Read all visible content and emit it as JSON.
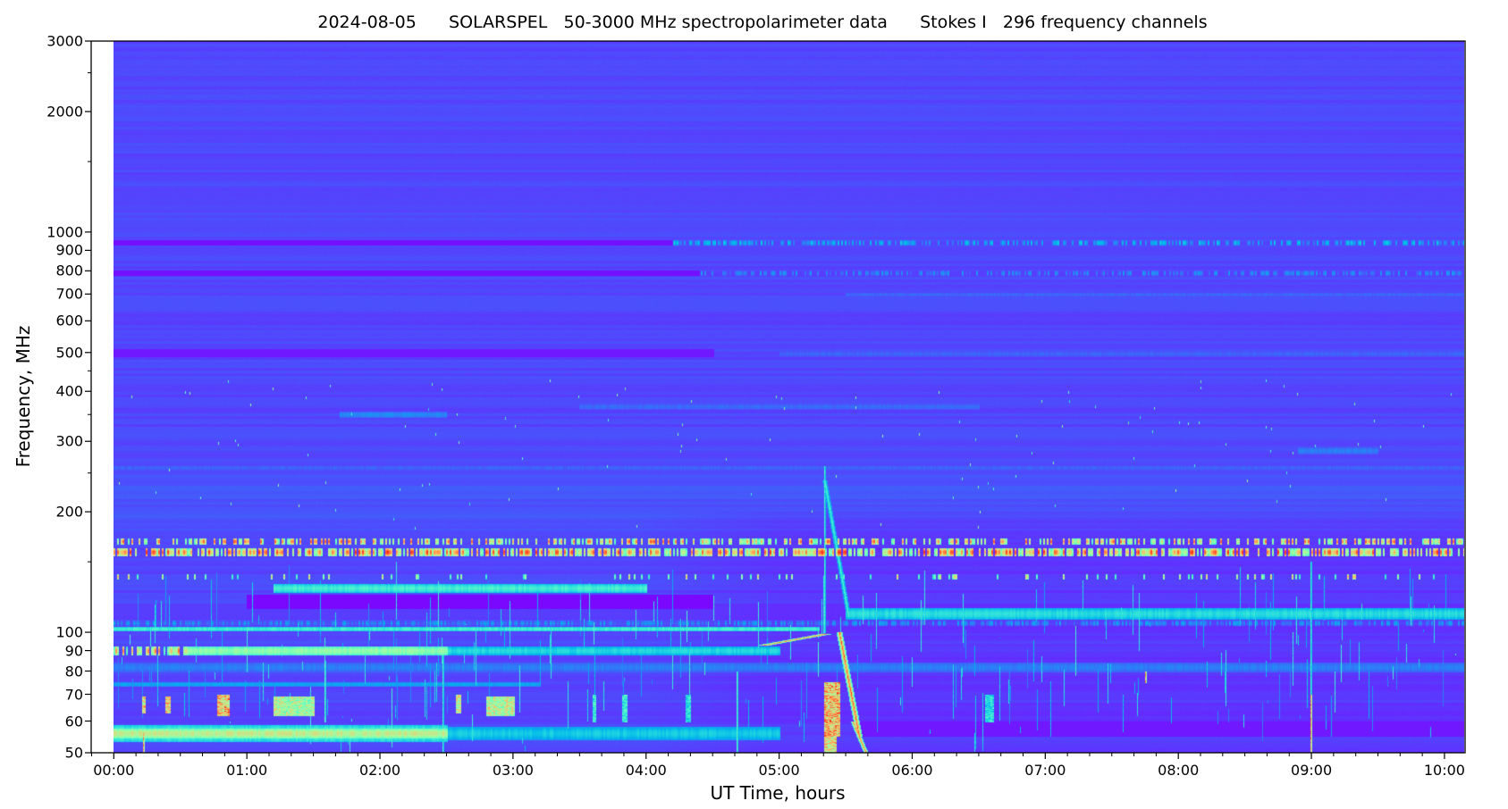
{
  "chart_data": {
    "type": "heatmap",
    "title": "2024-08-05      SOLARSPEL   50-3000 MHz spectropolarimeter data      Stokes I   296 frequency channels",
    "xlabel": "UT Time, hours",
    "ylabel": "Frequency, MHz",
    "x_unit": "hours UT",
    "xlim": [
      -0.17,
      10.155
    ],
    "data_time_range": [
      0,
      10.155
    ],
    "ylim": [
      50,
      3000
    ],
    "yscale": "log",
    "colormap": "rainbow",
    "grid": false,
    "legend": "none",
    "x_ticks": [
      {
        "value": 0,
        "label": "00:00"
      },
      {
        "value": 1,
        "label": "01:00"
      },
      {
        "value": 2,
        "label": "02:00"
      },
      {
        "value": 3,
        "label": "03:00"
      },
      {
        "value": 4,
        "label": "04:00"
      },
      {
        "value": 5,
        "label": "05:00"
      },
      {
        "value": 6,
        "label": "06:00"
      },
      {
        "value": 7,
        "label": "07:00"
      },
      {
        "value": 8,
        "label": "08:00"
      },
      {
        "value": 9,
        "label": "09:00"
      },
      {
        "value": 10,
        "label": "10:00"
      }
    ],
    "x_minor_step_minutes": 10,
    "y_ticks": [
      {
        "value": 50,
        "label": "50"
      },
      {
        "value": 60,
        "label": "60"
      },
      {
        "value": 70,
        "label": "70"
      },
      {
        "value": 80,
        "label": "80"
      },
      {
        "value": 90,
        "label": "90"
      },
      {
        "value": 100,
        "label": "100"
      },
      {
        "value": 200,
        "label": "200"
      },
      {
        "value": 300,
        "label": "300"
      },
      {
        "value": 400,
        "label": "400"
      },
      {
        "value": 500,
        "label": "500"
      },
      {
        "value": 600,
        "label": "600"
      },
      {
        "value": 700,
        "label": "700"
      },
      {
        "value": 800,
        "label": "800"
      },
      {
        "value": 900,
        "label": "900"
      },
      {
        "value": 1000,
        "label": "1000"
      },
      {
        "value": 2000,
        "label": "2000"
      },
      {
        "value": 3000,
        "label": "3000"
      }
    ],
    "y_minor_ticks": [
      150,
      250,
      350,
      450,
      1500,
      2500
    ],
    "background_intensity": 0.09,
    "features": [
      {
        "kind": "band",
        "f": [
          930,
          955
        ],
        "t": [
          0,
          4.2
        ],
        "v": 0.02
      },
      {
        "kind": "band",
        "f": [
          930,
          955
        ],
        "t": [
          4.2,
          10.155
        ],
        "v": 0.3,
        "dots": 0.5
      },
      {
        "kind": "band",
        "f": [
          780,
          800
        ],
        "t": [
          0,
          4.4
        ],
        "v": 0.02
      },
      {
        "kind": "band",
        "f": [
          780,
          800
        ],
        "t": [
          4.4,
          10.155
        ],
        "v": 0.22,
        "dots": 0.5
      },
      {
        "kind": "band",
        "f": [
          695,
          705
        ],
        "t": [
          5.5,
          10.155
        ],
        "v": 0.15
      },
      {
        "kind": "band",
        "f": [
          490,
          510
        ],
        "t": [
          0,
          4.5
        ],
        "v": 0.03
      },
      {
        "kind": "band",
        "f": [
          490,
          505
        ],
        "t": [
          5.0,
          10.155
        ],
        "v": 0.14
      },
      {
        "kind": "band",
        "f": [
          345,
          355
        ],
        "t": [
          1.7,
          2.5
        ],
        "v": 0.2
      },
      {
        "kind": "band",
        "f": [
          362,
          372
        ],
        "t": [
          3.5,
          6.5
        ],
        "v": 0.15
      },
      {
        "kind": "band",
        "f": [
          280,
          290
        ],
        "t": [
          8.9,
          9.5
        ],
        "v": 0.18
      },
      {
        "kind": "band",
        "f": [
          255,
          262
        ],
        "t": [
          0,
          10.155
        ],
        "v": 0.14
      },
      {
        "kind": "band",
        "f": [
          166,
          172
        ],
        "t": [
          0,
          10.155
        ],
        "v": 0.9,
        "dots": 0.45
      },
      {
        "kind": "band",
        "f": [
          156,
          162
        ],
        "t": [
          0,
          10.155
        ],
        "v": 0.95,
        "dots": 0.7
      },
      {
        "kind": "band",
        "f": [
          136,
          140
        ],
        "t": [
          0,
          10.155
        ],
        "v": 0.75,
        "dots": 0.12
      },
      {
        "kind": "band",
        "f": [
          126,
          132
        ],
        "t": [
          1.2,
          4.0
        ],
        "v": 0.42
      },
      {
        "kind": "band",
        "f": [
          115,
          124
        ],
        "t": [
          1.0,
          4.5
        ],
        "v": 0.01
      },
      {
        "kind": "band",
        "f": [
          108,
          115
        ],
        "t": [
          5.5,
          10.155
        ],
        "v": 0.36
      },
      {
        "kind": "band",
        "f": [
          104,
          107
        ],
        "t": [
          0,
          10.155
        ],
        "v": 0.24,
        "dots": 0.6
      },
      {
        "kind": "band",
        "f": [
          101,
          103
        ],
        "t": [
          0,
          5.3
        ],
        "v": 0.42
      },
      {
        "kind": "band",
        "f": [
          88,
          92
        ],
        "t": [
          0,
          0.55
        ],
        "v": 0.88,
        "dots": 0.6
      },
      {
        "kind": "band",
        "f": [
          88,
          92
        ],
        "t": [
          0.55,
          2.5
        ],
        "v": 0.58
      },
      {
        "kind": "band",
        "f": [
          88,
          92
        ],
        "t": [
          2.5,
          5.0
        ],
        "v": 0.35
      },
      {
        "kind": "band",
        "f": [
          80,
          84
        ],
        "t": [
          0,
          10.155
        ],
        "v": 0.18
      },
      {
        "kind": "band",
        "f": [
          73.5,
          75
        ],
        "t": [
          0,
          3.2
        ],
        "v": 0.25
      },
      {
        "kind": "band",
        "f": [
          54.5,
          57.5
        ],
        "t": [
          0,
          2.5
        ],
        "v": 0.68
      },
      {
        "kind": "band",
        "f": [
          53.5,
          58.5
        ],
        "t": [
          0,
          2.5
        ],
        "v": 0.45
      },
      {
        "kind": "band",
        "f": [
          54,
          58
        ],
        "t": [
          2.5,
          5.0
        ],
        "v": 0.32
      },
      {
        "kind": "band",
        "f": [
          55,
          60
        ],
        "t": [
          5.6,
          10.155
        ],
        "v": 0.03
      },
      {
        "kind": "drift",
        "t0": 4.9,
        "f0": 93,
        "t1": 5.35,
        "f1": 99,
        "w": 0.1,
        "v": 0.95
      },
      {
        "kind": "burst",
        "t": [
          5.34,
          5.45
        ],
        "f": [
          55,
          75
        ],
        "v": 0.98
      },
      {
        "kind": "burst",
        "t": [
          5.34,
          5.42
        ],
        "f": [
          50,
          55
        ],
        "v": 0.9
      },
      {
        "kind": "drift",
        "t0": 5.45,
        "f0": 100,
        "t1": 5.6,
        "f1": 55,
        "w": 0.04,
        "v": 0.95
      },
      {
        "kind": "drift",
        "t0": 5.55,
        "f0": 60,
        "t1": 5.65,
        "f1": 50,
        "w": 0.03,
        "v": 0.9
      },
      {
        "kind": "drift",
        "t0": 5.34,
        "f0": 240,
        "t1": 5.52,
        "f1": 110,
        "w": 0.03,
        "v": 0.45
      },
      {
        "kind": "vline",
        "t": 5.34,
        "f": [
          100,
          260
        ],
        "v": 0.45
      },
      {
        "kind": "burst",
        "t": [
          0.21,
          0.23
        ],
        "f": [
          63,
          69
        ],
        "v": 0.9
      },
      {
        "kind": "burst",
        "t": [
          0.39,
          0.42
        ],
        "f": [
          63,
          69
        ],
        "v": 0.95
      },
      {
        "kind": "burst",
        "t": [
          0.78,
          0.86
        ],
        "f": [
          62,
          70
        ],
        "v": 0.95
      },
      {
        "kind": "burst",
        "t": [
          1.2,
          1.5
        ],
        "f": [
          62,
          69
        ],
        "v": 0.75
      },
      {
        "kind": "burst",
        "t": [
          2.57,
          2.6
        ],
        "f": [
          63,
          70
        ],
        "v": 0.85
      },
      {
        "kind": "burst",
        "t": [
          2.8,
          3.0
        ],
        "f": [
          62,
          69
        ],
        "v": 0.8
      },
      {
        "kind": "burst",
        "t": [
          3.6,
          3.62
        ],
        "f": [
          60,
          70
        ],
        "v": 0.5
      },
      {
        "kind": "burst",
        "t": [
          3.82,
          3.85
        ],
        "f": [
          60,
          70
        ],
        "v": 0.5
      },
      {
        "kind": "burst",
        "t": [
          4.3,
          4.33
        ],
        "f": [
          60,
          70
        ],
        "v": 0.45
      },
      {
        "kind": "burst",
        "t": [
          6.55,
          6.6
        ],
        "f": [
          60,
          70
        ],
        "v": 0.45
      },
      {
        "kind": "vline",
        "t": 0.22,
        "f": [
          50,
          56
        ],
        "v": 0.9
      },
      {
        "kind": "vline",
        "t": 8.99,
        "f": [
          50,
          70
        ],
        "v": 0.95
      },
      {
        "kind": "vline",
        "t": 8.99,
        "f": [
          70,
          150
        ],
        "v": 0.45
      },
      {
        "kind": "vline",
        "t": 7.75,
        "f": [
          75,
          80
        ],
        "v": 0.9
      },
      {
        "kind": "vline",
        "t": 4.68,
        "f": [
          50,
          80
        ],
        "v": 0.5
      },
      {
        "kind": "vline",
        "t": 1.58,
        "f": [
          60,
          85
        ],
        "v": 0.5
      },
      {
        "kind": "vline",
        "t": 2.47,
        "f": [
          50,
          90
        ],
        "v": 0.45
      }
    ]
  }
}
